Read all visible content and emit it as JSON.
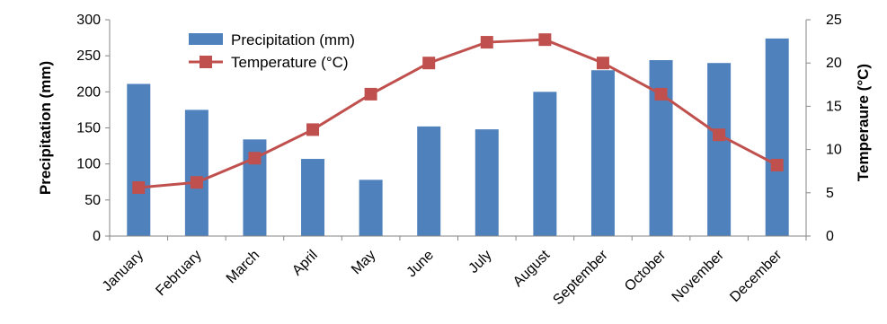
{
  "chart_data": {
    "type": "bar+line",
    "categories": [
      "January",
      "February",
      "March",
      "April",
      "May",
      "June",
      "July",
      "August",
      "September",
      "October",
      "November",
      "December"
    ],
    "series": [
      {
        "name": "Precipitation (mm)",
        "type": "bar",
        "axis": "left",
        "color": "#4F81BD",
        "values": [
          211,
          175,
          134,
          107,
          78,
          152,
          148,
          200,
          230,
          244,
          240,
          274
        ]
      },
      {
        "name": "Temperature (°C)",
        "type": "line",
        "axis": "right",
        "color": "#C0504D",
        "marker": "square",
        "values": [
          5.6,
          6.2,
          9.0,
          12.3,
          16.4,
          20.0,
          22.4,
          22.7,
          20.0,
          16.4,
          11.7,
          8.2
        ]
      }
    ],
    "ylabel": "Precipitation (mm)",
    "y2label": "Temperaure (°C)",
    "ylim": [
      0,
      300
    ],
    "y2lim": [
      0,
      25
    ],
    "yticks": [
      0,
      50,
      100,
      150,
      200,
      250,
      300
    ],
    "y2ticks": [
      0,
      5,
      10,
      15,
      20,
      25
    ],
    "grid": false,
    "legend_position": "top-left inside plot"
  }
}
